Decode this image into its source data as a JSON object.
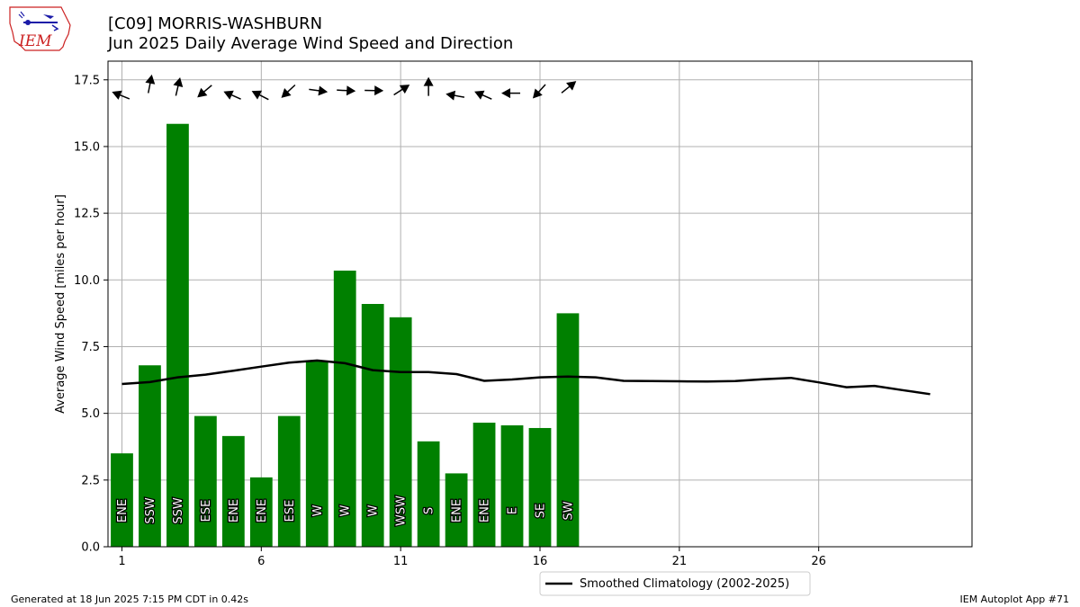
{
  "header": {
    "title_line1": "[C09] MORRIS-WASHBURN",
    "title_line2": "Jun 2025 Daily Average Wind Speed and Direction"
  },
  "logo": {
    "text": "IEM",
    "icon": "iowa-state-outline-logo-icon"
  },
  "footer": {
    "generated": "Generated at 18 Jun 2025 7:15 PM CDT in 0.42s",
    "app": "IEM Autoplot App #71"
  },
  "colors": {
    "bar": "#008000",
    "line": "#000000",
    "grid": "#b0b0b0",
    "label_text": "#ffffff",
    "logo_red": "#cc2222",
    "logo_blue": "#1a1aa8"
  },
  "chart_data": {
    "type": "bar",
    "ylabel": "Average Wind Speed [miles per hour]",
    "xlabel": "",
    "xlim": [
      0.5,
      31.5
    ],
    "ylim": [
      0,
      18.2
    ],
    "xticks": [
      1,
      6,
      11,
      16,
      21,
      26
    ],
    "yticks": [
      0.0,
      2.5,
      5.0,
      7.5,
      10.0,
      12.5,
      15.0,
      17.5
    ],
    "ytick_labels": [
      "0.0",
      "2.5",
      "5.0",
      "7.5",
      "10.0",
      "12.5",
      "15.0",
      "17.5"
    ],
    "grid": true,
    "days": [
      1,
      2,
      3,
      4,
      5,
      6,
      7,
      8,
      9,
      10,
      11,
      12,
      13,
      14,
      15,
      16,
      17
    ],
    "values": [
      3.5,
      6.8,
      15.85,
      4.9,
      4.15,
      2.6,
      4.9,
      6.95,
      10.35,
      9.1,
      8.6,
      3.95,
      2.75,
      4.65,
      4.55,
      4.45,
      8.75
    ],
    "directions": [
      "ENE",
      "SSW",
      "SSW",
      "ESE",
      "ENE",
      "ENE",
      "ESE",
      "W",
      "W",
      "W",
      "WSW",
      "S",
      "ENE",
      "ENE",
      "E",
      "SE",
      "SW"
    ],
    "arrow_angles_deg": [
      202,
      281,
      283,
      140,
      204,
      207,
      137,
      8,
      3,
      1,
      327,
      270,
      190,
      204,
      180,
      132,
      321
    ],
    "arrow_y": [
      16.9,
      17.3,
      17.2,
      17.1,
      16.9,
      16.9,
      17.1,
      17.1,
      17.1,
      17.1,
      17.1,
      17.2,
      16.9,
      16.9,
      17.0,
      17.1,
      17.2
    ],
    "climatology": {
      "name": "Smoothed Climatology (2002-2025)",
      "x": [
        1,
        2,
        3,
        4,
        5,
        6,
        7,
        8,
        9,
        10,
        11,
        12,
        13,
        14,
        15,
        16,
        17,
        18,
        19,
        20,
        21,
        22,
        23,
        24,
        25,
        26,
        27,
        28,
        29,
        30
      ],
      "y": [
        6.1,
        6.17,
        6.35,
        6.45,
        6.6,
        6.75,
        6.9,
        6.98,
        6.88,
        6.62,
        6.55,
        6.55,
        6.47,
        6.22,
        6.27,
        6.35,
        6.38,
        6.35,
        6.22,
        6.21,
        6.2,
        6.19,
        6.21,
        6.28,
        6.33,
        6.16,
        5.98,
        6.03,
        5.87,
        5.72
      ]
    },
    "legend": {
      "placement": "bottom-center"
    }
  }
}
